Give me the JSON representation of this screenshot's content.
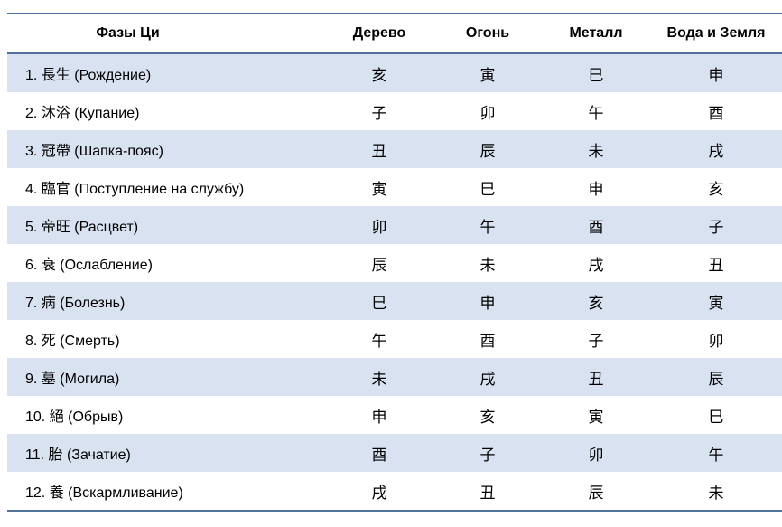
{
  "table": {
    "columns": [
      "Фазы Ци",
      "Дерево",
      "Огонь",
      "Металл",
      "Вода и Земля"
    ],
    "rows": [
      {
        "phase": "1. 長生 (Рождение)",
        "wood": "亥",
        "fire": "寅",
        "metal": "巳",
        "water_earth": "申"
      },
      {
        "phase": "2. 沐浴 (Купание)",
        "wood": "子",
        "fire": "卯",
        "metal": "午",
        "water_earth": "酉"
      },
      {
        "phase": "3. 冠帶 (Шапка-пояс)",
        "wood": "丑",
        "fire": "辰",
        "metal": "未",
        "water_earth": "戌"
      },
      {
        "phase": "4. 臨官 (Поступление на службу)",
        "wood": "寅",
        "fire": "巳",
        "metal": "申",
        "water_earth": "亥"
      },
      {
        "phase": "5. 帝旺 (Расцвет)",
        "wood": "卯",
        "fire": "午",
        "metal": "酉",
        "water_earth": "子"
      },
      {
        "phase": "6. 衰 (Ослабление)",
        "wood": "辰",
        "fire": "未",
        "metal": "戌",
        "water_earth": "丑"
      },
      {
        "phase": "7. 病 (Болезнь)",
        "wood": "巳",
        "fire": "申",
        "metal": "亥",
        "water_earth": "寅"
      },
      {
        "phase": "8. 死 (Смерть)",
        "wood": "午",
        "fire": "酉",
        "metal": "子",
        "water_earth": "卯"
      },
      {
        "phase": "9. 墓 (Могила)",
        "wood": "未",
        "fire": "戌",
        "metal": "丑",
        "water_earth": "辰"
      },
      {
        "phase": "10. 絕 (Обрыв)",
        "wood": "申",
        "fire": "亥",
        "metal": "寅",
        "water_earth": "巳"
      },
      {
        "phase": "11. 胎 (Зачатие)",
        "wood": "酉",
        "fire": "子",
        "metal": "卯",
        "water_earth": "午"
      },
      {
        "phase": "12. 養 (Вскармливание)",
        "wood": "戌",
        "fire": "丑",
        "metal": "辰",
        "water_earth": "未"
      }
    ]
  },
  "colors": {
    "border": "#50739c",
    "row_stripe": "#d8e2f0",
    "text": "#000000",
    "background": "#ffffff"
  }
}
